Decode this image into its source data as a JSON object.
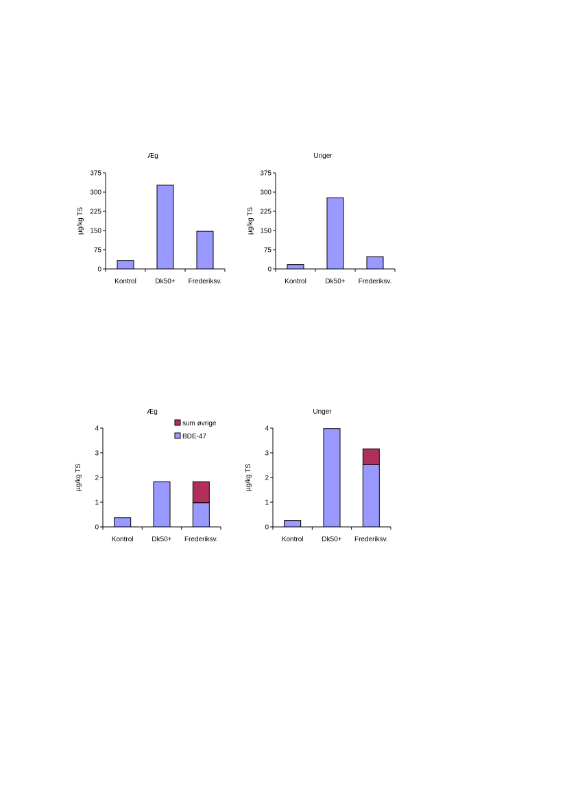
{
  "colors": {
    "bar": "#9999ff",
    "stack_top": "#b0305a",
    "stroke": "#000000"
  },
  "chart_data": [
    {
      "type": "bar",
      "title": "Æg",
      "ylabel": "µg/kg TS",
      "xlabel": "",
      "categories": [
        "Kontrol",
        "Dk50+",
        "Frederiksv."
      ],
      "values": [
        33,
        327,
        147
      ],
      "ylim": [
        0,
        375
      ],
      "yticks": [
        0,
        75,
        150,
        225,
        300,
        375
      ],
      "grid": false
    },
    {
      "type": "bar",
      "title": "Unger",
      "ylabel": "µg/kg TS",
      "xlabel": "",
      "categories": [
        "Kontrol",
        "Dk50+",
        "Frederiksv."
      ],
      "values": [
        17,
        278,
        48
      ],
      "ylim": [
        0,
        375
      ],
      "yticks": [
        0,
        75,
        150,
        225,
        300,
        375
      ],
      "grid": false
    },
    {
      "type": "bar",
      "stacked": true,
      "title": "Æg",
      "ylabel": "µg/kg TS",
      "xlabel": "",
      "categories": [
        "Kontrol",
        "Dk50+",
        "Frederiksv."
      ],
      "series": [
        {
          "name": "BDE-47",
          "values": [
            0.37,
            1.83,
            0.98
          ]
        },
        {
          "name": "sum øvrige",
          "values": [
            0,
            0,
            0.85
          ]
        }
      ],
      "legend": {
        "entries": [
          "sum øvrige",
          "BDE-47"
        ],
        "placement": "top-right"
      },
      "ylim": [
        0,
        4
      ],
      "yticks": [
        0,
        1,
        2,
        3,
        4
      ],
      "grid": false
    },
    {
      "type": "bar",
      "stacked": true,
      "title": "Unger",
      "ylabel": "µg/kg TS",
      "xlabel": "",
      "categories": [
        "Kontrol",
        "Dk50+",
        "Frederiksv."
      ],
      "series": [
        {
          "name": "BDE-47",
          "values": [
            0.26,
            3.98,
            2.52
          ]
        },
        {
          "name": "sum øvrige",
          "values": [
            0,
            0,
            0.64
          ]
        }
      ],
      "ylim": [
        0,
        4
      ],
      "yticks": [
        0,
        1,
        2,
        3,
        4
      ],
      "grid": false
    }
  ]
}
